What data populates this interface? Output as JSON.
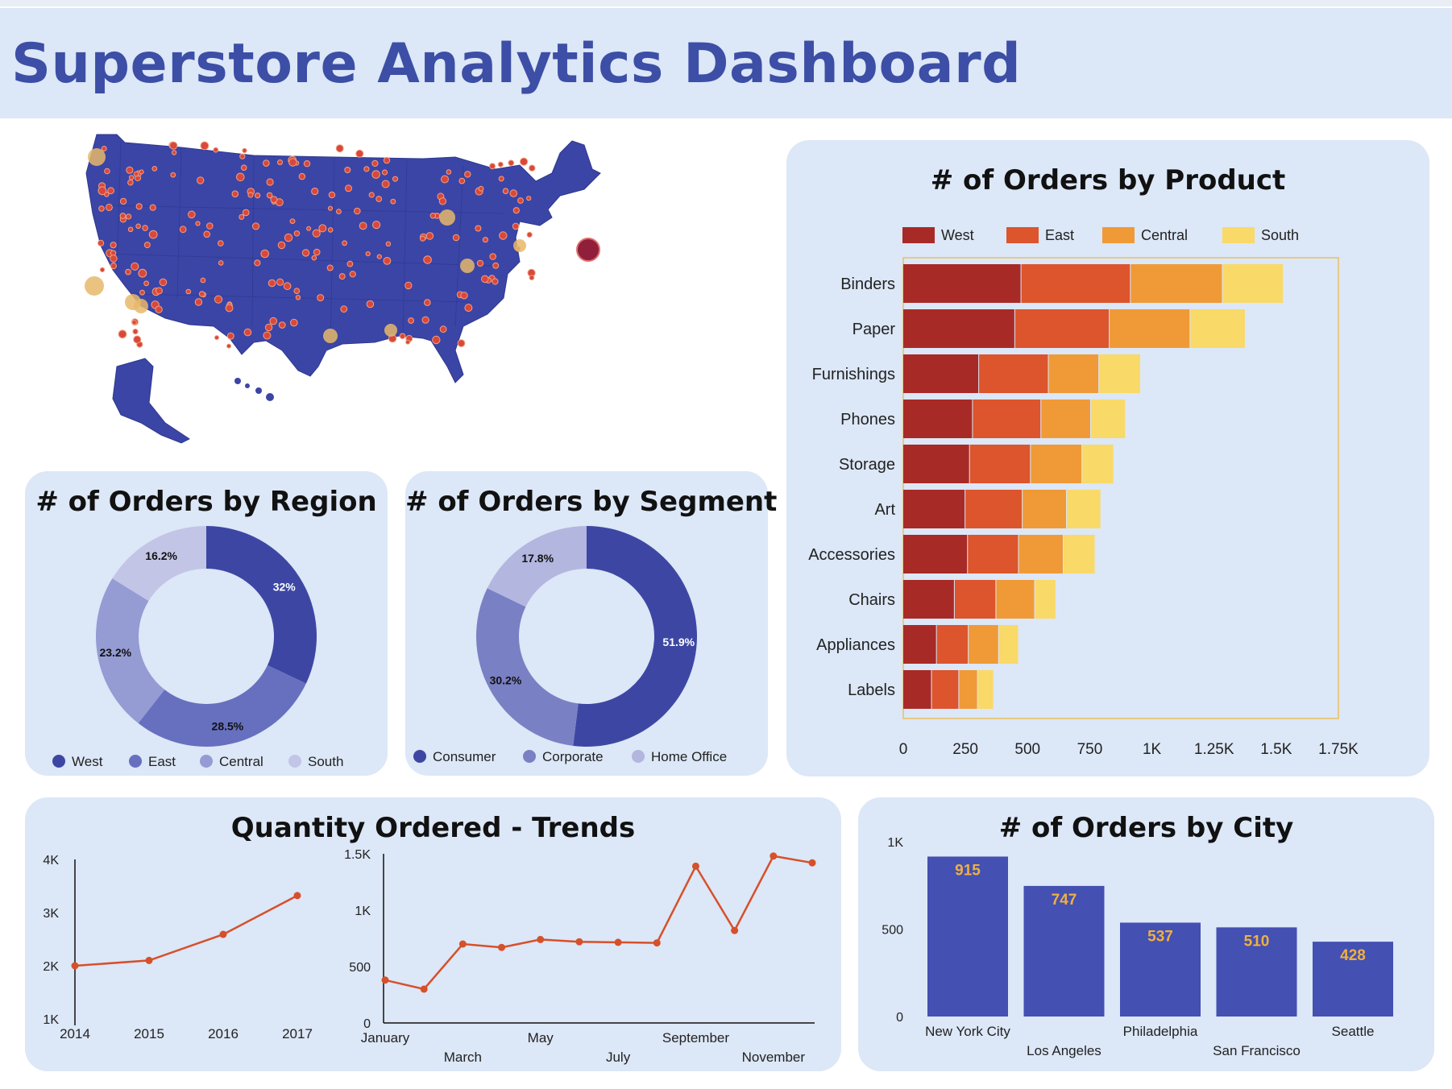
{
  "header": {
    "title": "Superstore Analytics Dashboard"
  },
  "colors": {
    "accent": "#3d4ea6",
    "card_bg": "#dce7f7",
    "region": [
      "#3d47a3",
      "#6770bf",
      "#959bd3",
      "#c3c5e6"
    ],
    "segment": [
      "#3d47a3",
      "#7a80c4",
      "#b3b6df"
    ],
    "product": [
      "#a82a26",
      "#dc552c",
      "#f09a37",
      "#f9d968"
    ],
    "line": "#d6502a",
    "city_bar": "#4450b2",
    "city_label": "#f0b040"
  },
  "map": {
    "icon": "us-map-with-order-markers"
  },
  "region_chart": {
    "title": "# of Orders by Region",
    "chart_data": {
      "type": "donut",
      "labels": [
        "West",
        "East",
        "Central",
        "South"
      ],
      "values": [
        32,
        28.5,
        23.2,
        16.2
      ],
      "value_labels": [
        "32%",
        "28.5%",
        "23.2%",
        "16.2%"
      ],
      "legend": "bottom"
    }
  },
  "segment_chart": {
    "title": "# of Orders by Segment",
    "chart_data": {
      "type": "donut",
      "labels": [
        "Consumer",
        "Corporate",
        "Home Office"
      ],
      "values": [
        51.9,
        30.2,
        17.8
      ],
      "value_labels": [
        "51.9%",
        "30.2%",
        "17.8%"
      ],
      "legend": "bottom"
    }
  },
  "product_chart": {
    "title": "# of Orders by Product",
    "chart_data": {
      "type": "bar",
      "orientation": "horizontal",
      "stacked": true,
      "categories": [
        "Binders",
        "Paper",
        "Furnishings",
        "Phones",
        "Storage",
        "Art",
        "Accessories",
        "Chairs",
        "Appliances",
        "Labels"
      ],
      "series": [
        {
          "name": "West",
          "values": [
            475,
            450,
            305,
            280,
            268,
            250,
            260,
            207,
            135,
            115
          ]
        },
        {
          "name": "East",
          "values": [
            440,
            380,
            280,
            275,
            245,
            230,
            205,
            167,
            128,
            110
          ]
        },
        {
          "name": "Central",
          "values": [
            370,
            325,
            203,
            200,
            207,
            178,
            180,
            156,
            122,
            75
          ]
        },
        {
          "name": "South",
          "values": [
            245,
            222,
            168,
            140,
            128,
            138,
            128,
            85,
            80,
            65
          ]
        }
      ],
      "xlim": [
        0,
        1750
      ],
      "xticks": [
        "0",
        "250",
        "500",
        "750",
        "1K",
        "1.25K",
        "1.5K",
        "1.75K"
      ],
      "legend": "top"
    }
  },
  "trends": {
    "title": "Quantity Ordered - Trends",
    "yearly": {
      "chart_data": {
        "type": "line",
        "x": [
          "2014",
          "2015",
          "2016",
          "2017"
        ],
        "values": [
          2000,
          2100,
          2590,
          3320
        ],
        "ylim": [
          1000,
          4000
        ],
        "yticks": [
          "1K",
          "2K",
          "3K",
          "4K"
        ]
      }
    },
    "monthly": {
      "chart_data": {
        "type": "line",
        "x": [
          "January",
          "February",
          "March",
          "April",
          "May",
          "June",
          "July",
          "August",
          "September",
          "October",
          "November",
          "December"
        ],
        "values": [
          380,
          300,
          700,
          670,
          740,
          720,
          715,
          710,
          1390,
          820,
          1480,
          1420
        ],
        "ylim": [
          0,
          1500
        ],
        "yticks": [
          "0",
          "500",
          "1K",
          "1.5K"
        ],
        "xtick_labels": [
          "January",
          "March",
          "May",
          "July",
          "September",
          "November"
        ]
      }
    }
  },
  "city_chart": {
    "title": "# of Orders by City",
    "chart_data": {
      "type": "bar",
      "categories": [
        "New York City",
        "Los Angeles",
        "Philadelphia",
        "San Francisco",
        "Seattle"
      ],
      "values": [
        915,
        747,
        537,
        510,
        428
      ],
      "value_labels": [
        "915",
        "747",
        "537",
        "510",
        "428"
      ],
      "ylim": [
        0,
        1000
      ],
      "yticks": [
        "0",
        "500",
        "1K"
      ]
    }
  }
}
